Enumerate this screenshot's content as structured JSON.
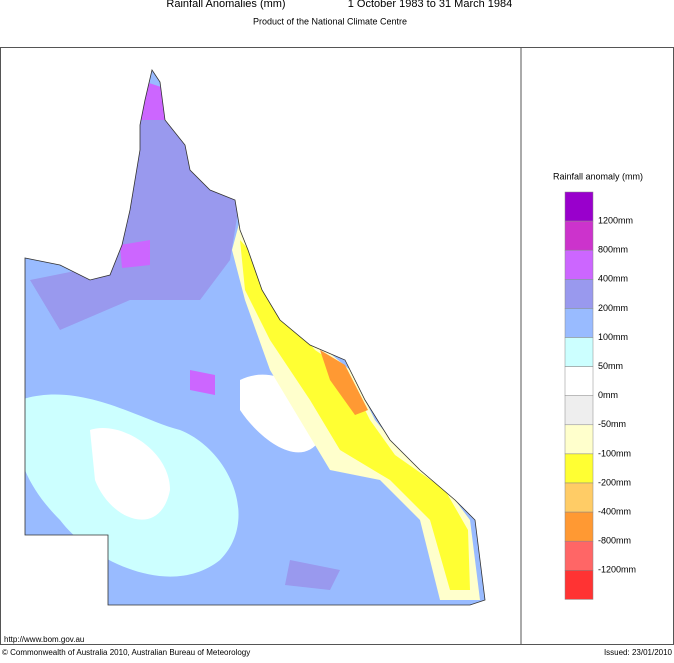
{
  "header": {
    "title": "Rainfall Anomalies (mm)",
    "period": "1 October 1983 to 31 March 1984",
    "subtitle": "Product of the National Climate Centre"
  },
  "legend": {
    "title": "Rainfall anomaly (mm)",
    "colors": [
      "#9900cc",
      "#cc33cc",
      "#cc66ff",
      "#9999ee",
      "#99bbff",
      "#ccffff",
      "#ffffff",
      "#eeeeee",
      "#ffffcc",
      "#ffff33",
      "#ffcc66",
      "#ff9933",
      "#ff6666",
      "#ff3333"
    ],
    "labels": [
      "1200mm",
      "800mm",
      "400mm",
      "200mm",
      "100mm",
      "50mm",
      "0mm",
      "-50mm",
      "-100mm",
      "-200mm",
      "-400mm",
      "-800mm",
      "-1200mm"
    ]
  },
  "footer": {
    "url": "http://www.bom.gov.au",
    "copyright": "© Commonwealth of Australia 2010, Australian Bureau of Meteorology",
    "issued": "Issued: 23/01/2010"
  }
}
